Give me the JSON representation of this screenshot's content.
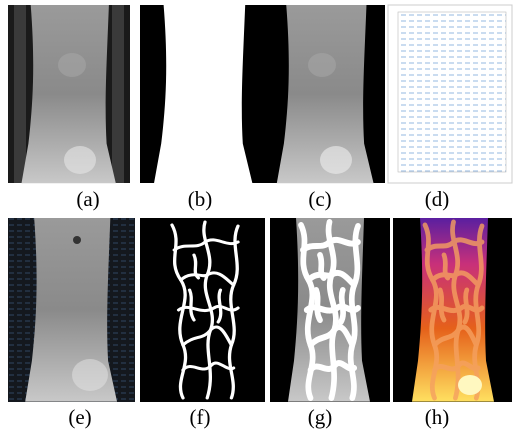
{
  "captions": [
    "(a)",
    "(b)",
    "(c)",
    "(d)",
    "(e)",
    "(f)",
    "(g)",
    "(h)"
  ]
}
